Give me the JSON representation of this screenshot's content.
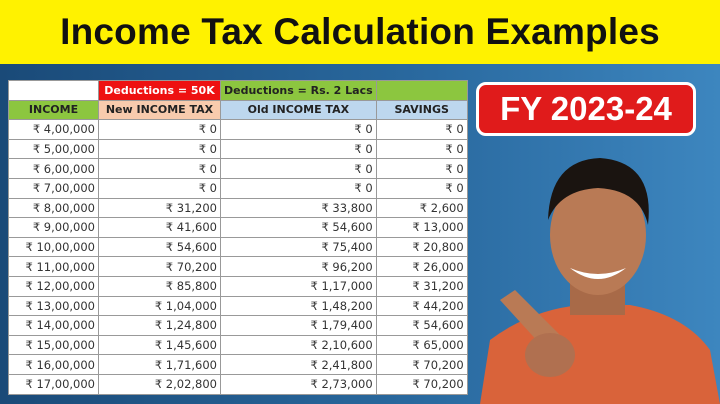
{
  "title": "Income Tax Calculation Examples",
  "badge": "FY 2023-24",
  "table": {
    "group_headers": [
      "",
      "Deductions = 50K",
      "Deductions = Rs. 2 Lacs",
      ""
    ],
    "headers": [
      "INCOME",
      "New INCOME TAX",
      "Old INCOME TAX",
      "SAVINGS"
    ],
    "rows": [
      [
        "₹ 4,00,000",
        "₹ 0",
        "₹ 0",
        "₹ 0"
      ],
      [
        "₹ 5,00,000",
        "₹ 0",
        "₹ 0",
        "₹ 0"
      ],
      [
        "₹ 6,00,000",
        "₹ 0",
        "₹ 0",
        "₹ 0"
      ],
      [
        "₹ 7,00,000",
        "₹ 0",
        "₹ 0",
        "₹ 0"
      ],
      [
        "₹ 8,00,000",
        "₹ 31,200",
        "₹ 33,800",
        "₹ 2,600"
      ],
      [
        "₹ 9,00,000",
        "₹ 41,600",
        "₹ 54,600",
        "₹ 13,000"
      ],
      [
        "₹ 10,00,000",
        "₹ 54,600",
        "₹ 75,400",
        "₹ 20,800"
      ],
      [
        "₹ 11,00,000",
        "₹ 70,200",
        "₹ 96,200",
        "₹ 26,000"
      ],
      [
        "₹ 12,00,000",
        "₹ 85,800",
        "₹ 1,17,000",
        "₹ 31,200"
      ],
      [
        "₹ 13,00,000",
        "₹ 1,04,000",
        "₹ 1,48,200",
        "₹ 44,200"
      ],
      [
        "₹ 14,00,000",
        "₹ 1,24,800",
        "₹ 1,79,400",
        "₹ 54,600"
      ],
      [
        "₹ 15,00,000",
        "₹ 1,45,600",
        "₹ 2,10,600",
        "₹ 65,000"
      ],
      [
        "₹ 16,00,000",
        "₹ 1,71,600",
        "₹ 2,41,800",
        "₹ 70,200"
      ],
      [
        "₹ 17,00,000",
        "₹ 2,02,800",
        "₹ 2,73,000",
        "₹ 70,200"
      ]
    ]
  },
  "colors": {
    "title_bg": "#fff200",
    "badge_bg": "#e01b1b",
    "background": "#1d4f7c"
  }
}
